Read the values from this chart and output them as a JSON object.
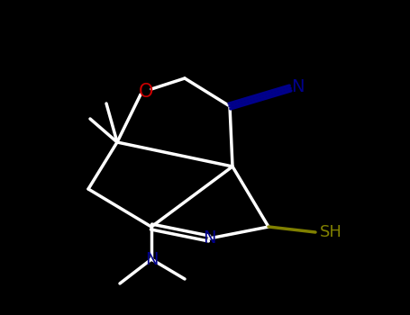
{
  "bg_color": "#000000",
  "bond_color": "#ffffff",
  "O_color": "#cc0000",
  "N_color": "#00008b",
  "S_color": "#808000",
  "lw": 2.5,
  "figsize": [
    4.55,
    3.5
  ],
  "dpi": 100,
  "xlim": [
    0,
    455
  ],
  "ylim": [
    0,
    350
  ]
}
